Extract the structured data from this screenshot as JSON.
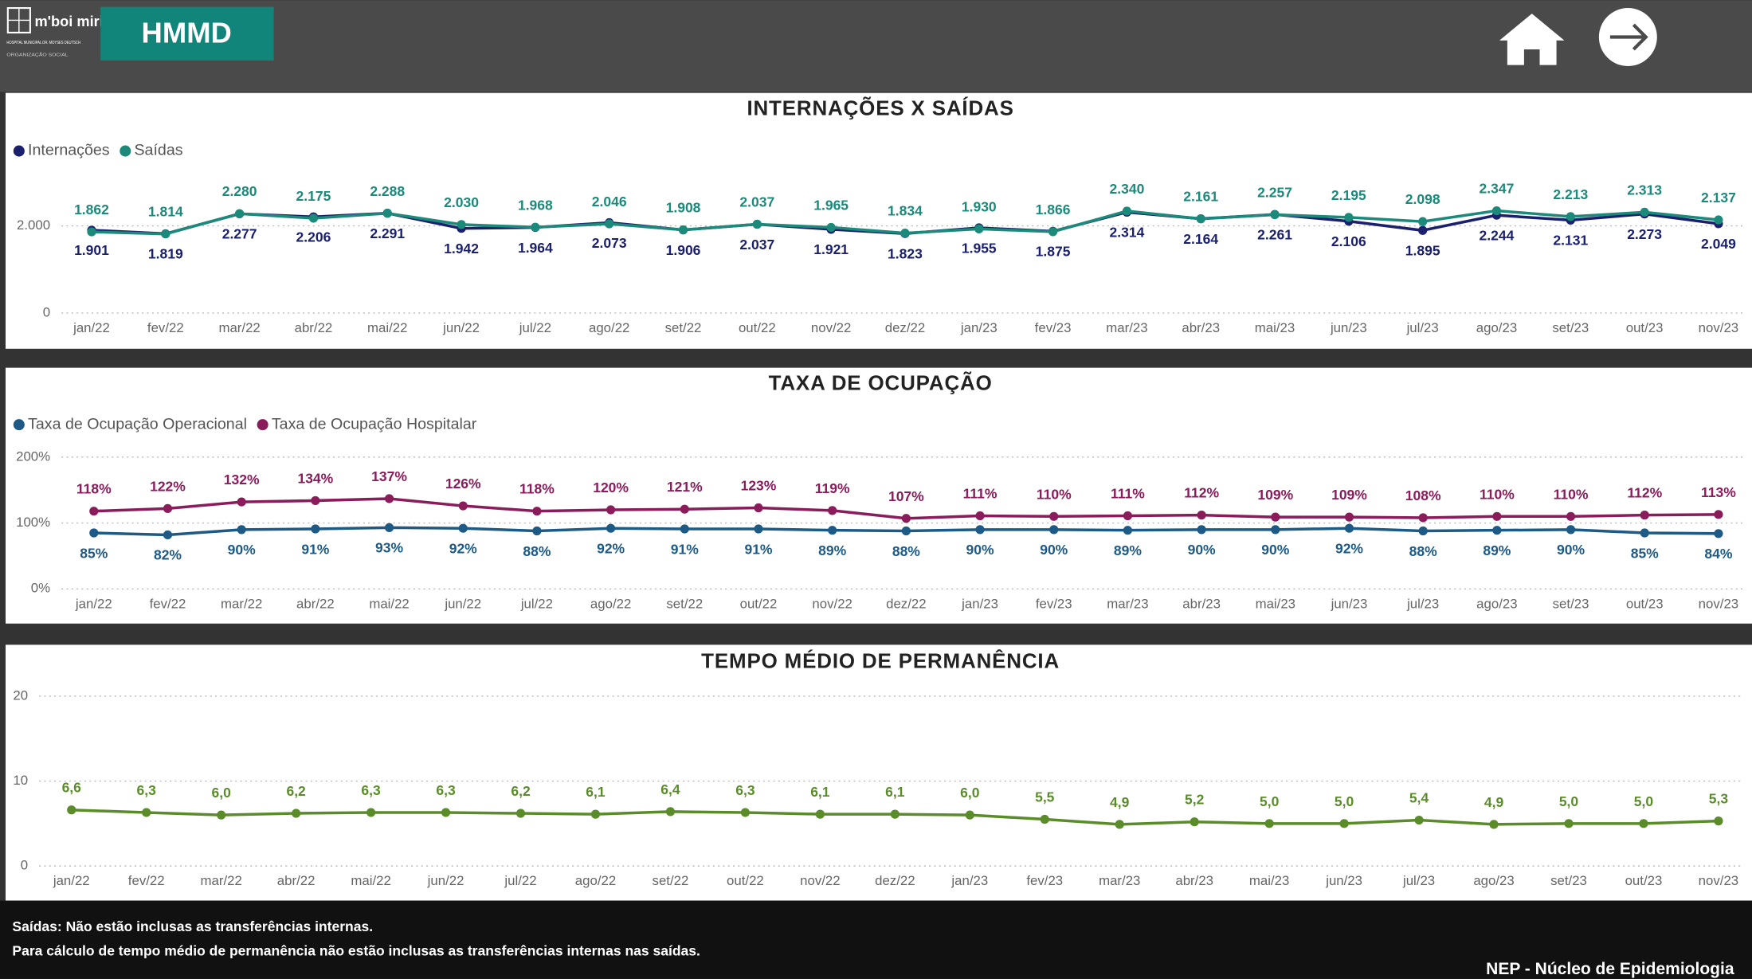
{
  "header": {
    "logo": "m'boi mirim",
    "logo_sub": "HOSPITAL MUNICIPAL DR. MOYSES DEUTSCH",
    "logo_org": "ORGANIZAÇÃO SOCIAL",
    "button": "HMMD"
  },
  "chart_data": [
    {
      "type": "line",
      "title": "INTERNAÇÕES X SAÍDAS",
      "categories": [
        "jan/22",
        "fev/22",
        "mar/22",
        "abr/22",
        "mai/22",
        "jun/22",
        "jul/22",
        "ago/22",
        "set/22",
        "out/22",
        "nov/22",
        "dez/22",
        "jan/23",
        "fev/23",
        "mar/23",
        "abr/23",
        "mai/23",
        "jun/23",
        "jul/23",
        "ago/23",
        "set/23",
        "out/23",
        "nov/23"
      ],
      "series": [
        {
          "name": "Internações",
          "color": "#1a1f6e",
          "values": [
            1901,
            1819,
            2277,
            2206,
            2291,
            1942,
            1964,
            2073,
            1906,
            2037,
            1921,
            1823,
            1955,
            1875,
            2314,
            2164,
            2261,
            2106,
            1895,
            2244,
            2131,
            2273,
            2049
          ],
          "value_labels": [
            "1.901",
            "1.819",
            "2.277",
            "2.206",
            "2.291",
            "1.942",
            "1.964",
            "2.073",
            "1.906",
            "2.037",
            "1.921",
            "1.823",
            "1.955",
            "1.875",
            "2.314",
            "2.164",
            "2.261",
            "2.106",
            "1.895",
            "2.244",
            "2.131",
            "2.273",
            "2.049"
          ]
        },
        {
          "name": "Saídas",
          "color": "#1b8a7a",
          "values": [
            1862,
            1814,
            2280,
            2175,
            2288,
            2030,
            1968,
            2046,
            1908,
            2037,
            1965,
            1834,
            1930,
            1866,
            2340,
            2161,
            2257,
            2195,
            2098,
            2347,
            2213,
            2313,
            2137
          ],
          "value_labels": [
            "1.862",
            "1.814",
            "2.280",
            "2.175",
            "2.288",
            "2.030",
            "1.968",
            "2.046",
            "1.908",
            "2.037",
            "1.965",
            "1.834",
            "1.930",
            "1.866",
            "2.340",
            "2.161",
            "2.257",
            "2.195",
            "2.098",
            "2.347",
            "2.213",
            "2.313",
            "2.137"
          ]
        }
      ],
      "ylim": [
        0,
        3000
      ],
      "yticks": [
        0,
        {
          "value": 2000,
          "label": "2.000"
        }
      ],
      "grid": true,
      "legend": "top-left"
    },
    {
      "type": "line",
      "title": "TAXA DE OCUPAÇÃO",
      "categories": [
        "jan/22",
        "fev/22",
        "mar/22",
        "abr/22",
        "mai/22",
        "jun/22",
        "jul/22",
        "ago/22",
        "set/22",
        "out/22",
        "nov/22",
        "dez/22",
        "jan/23",
        "fev/23",
        "mar/23",
        "abr/23",
        "mai/23",
        "jun/23",
        "jul/23",
        "ago/23",
        "set/23",
        "out/23",
        "nov/23"
      ],
      "series": [
        {
          "name": "Taxa de Ocupação Operacional",
          "color": "#1d5a85",
          "values": [
            85,
            82,
            90,
            91,
            93,
            92,
            88,
            92,
            91,
            91,
            89,
            88,
            90,
            90,
            89,
            90,
            90,
            92,
            88,
            89,
            90,
            85,
            84
          ],
          "value_labels": [
            "85%",
            "82%",
            "90%",
            "91%",
            "93%",
            "92%",
            "88%",
            "92%",
            "91%",
            "91%",
            "89%",
            "88%",
            "90%",
            "90%",
            "89%",
            "90%",
            "90%",
            "92%",
            "88%",
            "89%",
            "90%",
            "85%",
            "84%"
          ]
        },
        {
          "name": "Taxa de Ocupação Hospitalar",
          "color": "#8a1c5c",
          "values": [
            118,
            122,
            132,
            134,
            137,
            126,
            118,
            120,
            121,
            123,
            119,
            107,
            111,
            110,
            111,
            112,
            109,
            109,
            108,
            110,
            110,
            112,
            113
          ],
          "value_labels": [
            "118%",
            "122%",
            "132%",
            "134%",
            "137%",
            "126%",
            "118%",
            "120%",
            "121%",
            "123%",
            "119%",
            "107%",
            "111%",
            "110%",
            "111%",
            "112%",
            "109%",
            "109%",
            "108%",
            "110%",
            "110%",
            "112%",
            "113%"
          ]
        }
      ],
      "ylim": [
        0,
        200
      ],
      "yticks": [
        {
          "value": 0,
          "label": "0%"
        },
        {
          "value": 100,
          "label": "100%"
        },
        {
          "value": 200,
          "label": "200%"
        }
      ],
      "grid": true,
      "legend": "top-left"
    },
    {
      "type": "line",
      "title": "TEMPO MÉDIO DE PERMANÊNCIA",
      "categories": [
        "jan/22",
        "fev/22",
        "mar/22",
        "abr/22",
        "mai/22",
        "jun/22",
        "jul/22",
        "ago/22",
        "set/22",
        "out/22",
        "nov/22",
        "dez/22",
        "jan/23",
        "fev/23",
        "mar/23",
        "abr/23",
        "mai/23",
        "jun/23",
        "jul/23",
        "ago/23",
        "set/23",
        "out/23",
        "nov/23"
      ],
      "series": [
        {
          "color": "#5b8c2a",
          "values": [
            6.6,
            6.3,
            6.0,
            6.2,
            6.3,
            6.3,
            6.2,
            6.1,
            6.4,
            6.3,
            6.1,
            6.1,
            6.0,
            5.5,
            4.9,
            5.2,
            5.0,
            5.0,
            5.4,
            4.9,
            5.0,
            5.0,
            5.3
          ],
          "value_labels": [
            "6,6",
            "6,3",
            "6,0",
            "6,2",
            "6,3",
            "6,3",
            "6,2",
            "6,1",
            "6,4",
            "6,3",
            "6,1",
            "6,1",
            "6,0",
            "5,5",
            "4,9",
            "5,2",
            "5,0",
            "5,0",
            "5,4",
            "4,9",
            "5,0",
            "5,0",
            "5,3"
          ]
        }
      ],
      "ylim": [
        0,
        20
      ],
      "yticks": [
        0,
        10,
        20
      ],
      "grid": true
    }
  ],
  "footer": {
    "notes": [
      "Saídas: Não estão inclusas as transferências internas.",
      "Para cálculo de tempo médio de permanência não estão inclusas as transferências internas nas saídas."
    ],
    "credit": "NEP - Núcleo de Epidemiologia"
  }
}
